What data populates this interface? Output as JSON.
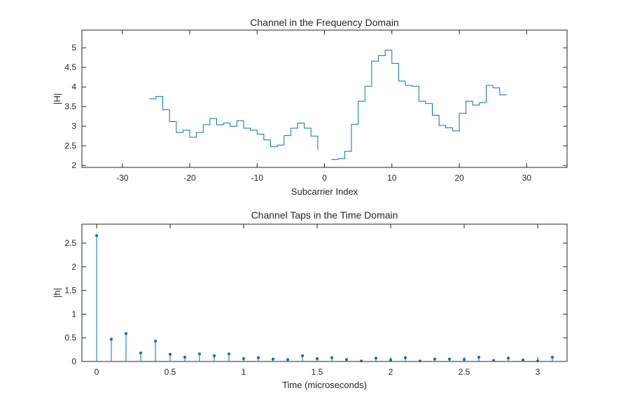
{
  "colors": {
    "series": "#0072BD",
    "axis": "#262626",
    "background": "#ffffff"
  },
  "chart_data": [
    {
      "type": "stairs",
      "title": "Channel in the Frequency Domain",
      "xlabel": "Subcarrier Index",
      "ylabel": "|H|",
      "xlim": [
        -36,
        36
      ],
      "ylim": [
        1.95,
        5.45
      ],
      "xticks": [
        -30,
        -20,
        -10,
        0,
        10,
        20,
        30
      ],
      "yticks": [
        2,
        2.5,
        3,
        3.5,
        4,
        4.5,
        5
      ],
      "grid": false,
      "series": [
        {
          "x": [
            -26,
            -25,
            -24,
            -23,
            -22,
            -21,
            -20,
            -19,
            -18,
            -17,
            -16,
            -15,
            -14,
            -13,
            -12,
            -11,
            -10,
            -9,
            -8,
            -7,
            -6,
            -5,
            -4,
            -3,
            -2,
            -1
          ],
          "y": [
            3.7,
            3.76,
            3.42,
            3.12,
            2.84,
            2.9,
            2.72,
            2.84,
            3.04,
            3.2,
            3.04,
            3.08,
            3.0,
            3.14,
            2.95,
            2.9,
            2.8,
            2.65,
            2.48,
            2.52,
            2.76,
            2.95,
            3.08,
            2.95,
            2.75,
            2.4
          ]
        },
        {
          "x": [
            1,
            2,
            3,
            4,
            5,
            6,
            7,
            8,
            9,
            10,
            11,
            12,
            13,
            14,
            15,
            16,
            17,
            18,
            19,
            20,
            21,
            22,
            23,
            24,
            25,
            26,
            27
          ],
          "y": [
            2.15,
            2.17,
            2.36,
            3.05,
            3.64,
            4.02,
            4.66,
            4.8,
            4.94,
            4.6,
            4.15,
            4.04,
            4.02,
            3.64,
            3.58,
            3.28,
            3.02,
            2.96,
            2.88,
            3.33,
            3.64,
            3.54,
            3.6,
            4.04,
            3.98,
            3.8,
            3.8
          ]
        }
      ]
    },
    {
      "type": "stem",
      "title": "Channel Taps in the Time Domain",
      "xlabel": "Time (microseconds)",
      "ylabel": "|h|",
      "xlim": [
        -0.1,
        3.2
      ],
      "ylim": [
        0,
        2.9
      ],
      "xticks": [
        0,
        0.5,
        1,
        1.5,
        2,
        2.5,
        3
      ],
      "yticks": [
        0,
        0.5,
        1,
        1.5,
        2,
        2.5
      ],
      "grid": false,
      "series": [
        {
          "x": [
            0,
            0.1,
            0.2,
            0.3,
            0.4,
            0.5,
            0.6,
            0.7,
            0.8,
            0.9,
            1.0,
            1.1,
            1.2,
            1.3,
            1.4,
            1.5,
            1.6,
            1.7,
            1.8,
            1.9,
            2.0,
            2.1,
            2.2,
            2.3,
            2.4,
            2.5,
            2.6,
            2.7,
            2.8,
            2.9,
            3.0,
            3.1
          ],
          "y": [
            2.66,
            0.47,
            0.59,
            0.18,
            0.43,
            0.15,
            0.09,
            0.16,
            0.12,
            0.16,
            0.06,
            0.08,
            0.05,
            0.04,
            0.12,
            0.06,
            0.08,
            0.04,
            0.01,
            0.07,
            0.03,
            0.08,
            0.01,
            0.05,
            0.05,
            0.04,
            0.09,
            0.02,
            0.07,
            0.03,
            0.01,
            0.09
          ]
        }
      ]
    }
  ]
}
